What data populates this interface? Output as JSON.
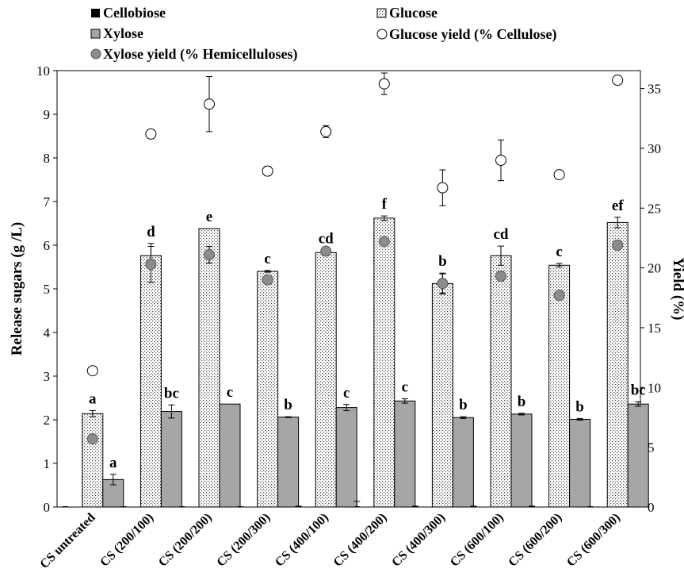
{
  "chart_data": {
    "type": "bar",
    "title": "",
    "ylabel": "Release  sugars (g /L)",
    "y2label": "Yield (%)",
    "ylim": [
      0,
      10
    ],
    "y2lim": [
      0,
      36.5
    ],
    "yticks": [
      "0",
      "1",
      "2",
      "3",
      "4",
      "5",
      "6",
      "7",
      "8",
      "9",
      "10"
    ],
    "y2ticks": [
      "0",
      "5",
      "10",
      "15",
      "20",
      "25",
      "30",
      "35"
    ],
    "categories": [
      "CS untreated",
      "CS (200/100)",
      "CS (200/200)",
      "CS (200/300)",
      "CS (400/100)",
      "CS (400/200)",
      "CS (400/300)",
      "CS (600/100)",
      "CS (600/200)",
      "CS (600/300)"
    ],
    "series": [
      {
        "name": "Cellobiose",
        "kind": "bar",
        "axis": "left",
        "pattern": "black",
        "values": [
          0,
          0,
          0,
          0,
          0.02,
          0,
          0.02,
          0.02,
          0.02,
          0
        ],
        "errors": [
          0,
          0,
          0,
          0,
          0,
          0.13,
          0,
          0,
          0,
          0
        ]
      },
      {
        "name": "Glucose",
        "kind": "bar",
        "axis": "left",
        "pattern": "dots",
        "values": [
          2.14,
          5.76,
          6.38,
          5.4,
          5.83,
          6.62,
          5.12,
          5.76,
          5.54,
          6.52
        ],
        "errors": [
          0.07,
          0.28,
          0,
          0.02,
          0.05,
          0.05,
          0.24,
          0.22,
          0.04,
          0.12
        ],
        "letters": [
          "a",
          "d",
          "e",
          "c",
          "cd",
          "f",
          "b",
          "cd",
          "c",
          "ef"
        ]
      },
      {
        "name": "Xylose",
        "kind": "bar",
        "axis": "left",
        "pattern": "gray",
        "values": [
          0.63,
          2.19,
          2.36,
          2.06,
          2.28,
          2.43,
          2.05,
          2.13,
          2.01,
          2.36
        ],
        "errors": [
          0.12,
          0.15,
          0,
          0.01,
          0.07,
          0.05,
          0.02,
          0.02,
          0.02,
          0.05
        ],
        "letters": [
          "a",
          "bc",
          "c",
          "b",
          "c",
          "c",
          "b",
          "b",
          "b",
          "bc"
        ]
      },
      {
        "name": "Glucose yield (% Cellulose)",
        "kind": "marker",
        "axis": "right",
        "marker": "open-circle",
        "values": [
          11.4,
          31.2,
          33.7,
          28.1,
          31.4,
          35.4,
          26.7,
          29.0,
          27.8,
          35.7
        ],
        "errors": [
          0,
          0,
          2.3,
          0.4,
          0.5,
          0.9,
          1.5,
          1.7,
          0,
          0
        ]
      },
      {
        "name": "Xylose yield (% Hemicelluloses)",
        "kind": "marker",
        "axis": "right",
        "marker": "gray-circle",
        "values": [
          5.7,
          20.3,
          21.1,
          19.0,
          21.4,
          22.2,
          18.7,
          19.3,
          17.7,
          21.9
        ],
        "errors": [
          0,
          1.5,
          0.7,
          0,
          0,
          0,
          0.8,
          0.4,
          0.3,
          0
        ]
      }
    ],
    "legend": "top",
    "grid": false
  }
}
